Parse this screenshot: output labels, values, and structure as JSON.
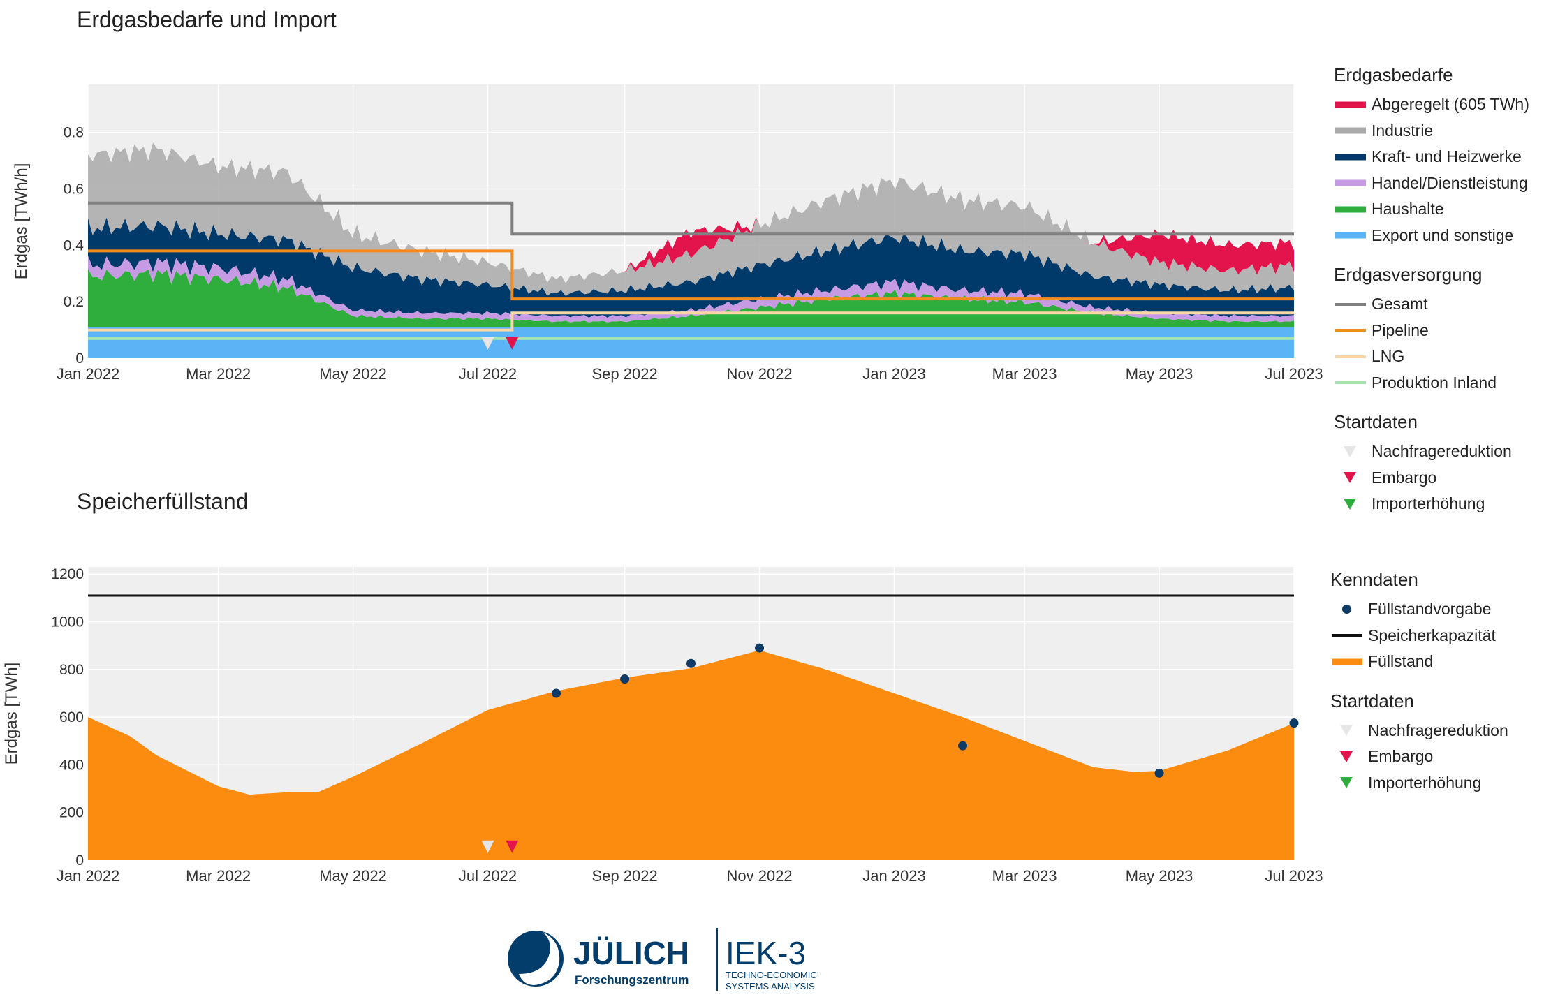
{
  "chart_top": {
    "title": "Erdgasbedarfe und Import",
    "ylabel": "Erdgas [TWh/h]",
    "x_ticks": [
      "Jan 2022",
      "Mar 2022",
      "May 2022",
      "Jul 2022",
      "Sep 2022",
      "Nov 2022",
      "Jan 2023",
      "Mar 2023",
      "May 2023",
      "Jul 2023"
    ],
    "y_ticks": [
      "0",
      "0.2",
      "0.4",
      "0.6",
      "0.8"
    ],
    "legend": {
      "demand_title": "Erdgasbedarfe",
      "demand": [
        {
          "label": "Abgeregelt (605 TWh)",
          "color": "#e3134b"
        },
        {
          "label": "Industrie",
          "color": "#a9a9a9"
        },
        {
          "label": "Kraft- und Heizwerke",
          "color": "#003a6a"
        },
        {
          "label": "Handel/Dienstleistung",
          "color": "#c79be4"
        },
        {
          "label": "Haushalte",
          "color": "#2fae3d"
        },
        {
          "label": "Export und sonstige",
          "color": "#5ab4f5"
        }
      ],
      "supply_title": "Erdgasversorgung",
      "supply": [
        {
          "label": "Gesamt",
          "color": "#808080"
        },
        {
          "label": "Pipeline",
          "color": "#f28c1e"
        },
        {
          "label": "LNG",
          "color": "#f9d6a6"
        },
        {
          "label": "Produktion Inland",
          "color": "#a6e3b0"
        }
      ],
      "start_title": "Startdaten",
      "start": [
        {
          "label": "Nachfragereduktion",
          "color": "#e6e6e6"
        },
        {
          "label": "Embargo",
          "color": "#e3134b"
        },
        {
          "label": "Importerhöhung",
          "color": "#2fae3d"
        }
      ]
    }
  },
  "chart_bottom": {
    "title": "Speicherfüllstand",
    "ylabel": "Erdgas [TWh]",
    "x_ticks": [
      "Jan 2022",
      "Mar 2022",
      "May 2022",
      "Jul 2022",
      "Sep 2022",
      "Nov 2022",
      "Jan 2023",
      "Mar 2023",
      "May 2023",
      "Jul 2023"
    ],
    "y_ticks": [
      "0",
      "200",
      "400",
      "600",
      "800",
      "1000",
      "1200"
    ],
    "legend": {
      "kenn_title": "Kenndaten",
      "kenn": [
        {
          "label": "Füllstandvorgabe",
          "color": "#0d3b66"
        },
        {
          "label": "Speicherkapazität",
          "color": "#111111"
        },
        {
          "label": "Füllstand",
          "color": "#fb8c0f"
        }
      ],
      "start_title": "Startdaten",
      "start": [
        {
          "label": "Nachfragereduktion",
          "color": "#e6e6e6"
        },
        {
          "label": "Embargo",
          "color": "#e3134b"
        },
        {
          "label": "Importerhöhung",
          "color": "#2fae3d"
        }
      ]
    }
  },
  "chart_data": [
    {
      "type": "area",
      "title": "Erdgasbedarfe und Import",
      "ylabel": "Erdgas [TWh/h]",
      "xlim": [
        "2022-01-01",
        "2023-07-01"
      ],
      "ylim": [
        0,
        0.97
      ],
      "x": [
        "2022-01-01",
        "2022-02-01",
        "2022-03-01",
        "2022-04-01",
        "2022-05-01",
        "2022-06-01",
        "2022-07-01",
        "2022-08-01",
        "2022-09-01",
        "2022-10-01",
        "2022-11-01",
        "2022-12-01",
        "2023-01-01",
        "2023-02-01",
        "2023-03-01",
        "2023-04-01",
        "2023-05-01",
        "2023-06-01",
        "2023-07-01"
      ],
      "series": [
        {
          "name": "Export und sonstige",
          "values": [
            0.11,
            0.11,
            0.11,
            0.11,
            0.11,
            0.11,
            0.11,
            0.11,
            0.11,
            0.11,
            0.11,
            0.11,
            0.11,
            0.11,
            0.11,
            0.11,
            0.11,
            0.11,
            0.11
          ]
        },
        {
          "name": "Haushalte",
          "values": [
            0.18,
            0.19,
            0.17,
            0.14,
            0.04,
            0.03,
            0.03,
            0.02,
            0.02,
            0.04,
            0.07,
            0.1,
            0.12,
            0.1,
            0.09,
            0.05,
            0.03,
            0.02,
            0.02
          ]
        },
        {
          "name": "Handel/Dienstleistung",
          "values": [
            0.04,
            0.04,
            0.04,
            0.03,
            0.02,
            0.02,
            0.02,
            0.02,
            0.02,
            0.02,
            0.03,
            0.03,
            0.04,
            0.03,
            0.03,
            0.02,
            0.02,
            0.02,
            0.02
          ]
        },
        {
          "name": "Kraft- und Heizwerke",
          "values": [
            0.13,
            0.13,
            0.12,
            0.14,
            0.15,
            0.12,
            0.1,
            0.08,
            0.09,
            0.1,
            0.12,
            0.14,
            0.16,
            0.14,
            0.14,
            0.11,
            0.1,
            0.09,
            0.1
          ]
        },
        {
          "name": "Industrie",
          "values": [
            0.26,
            0.27,
            0.24,
            0.24,
            0.12,
            0.1,
            0.08,
            0.05,
            0.07,
            0.1,
            0.14,
            0.18,
            0.2,
            0.18,
            0.17,
            0.12,
            0.08,
            0.07,
            0.08
          ]
        },
        {
          "name": "Abgeregelt (605 TWh)",
          "values": [
            0,
            0,
            0,
            0,
            0,
            0,
            0,
            0,
            0,
            0.08,
            0,
            0,
            0,
            0,
            0,
            0,
            0.1,
            0.09,
            0.08
          ]
        }
      ],
      "supply": [
        {
          "name": "Gesamt",
          "x": [
            "2022-01-01",
            "2022-07-12",
            "2022-07-12",
            "2023-07-01"
          ],
          "values": [
            0.55,
            0.55,
            0.44,
            0.44
          ]
        },
        {
          "name": "Pipeline",
          "x": [
            "2022-01-01",
            "2022-07-12",
            "2022-07-12",
            "2023-07-01"
          ],
          "values": [
            0.38,
            0.38,
            0.21,
            0.21
          ]
        },
        {
          "name": "LNG",
          "x": [
            "2022-01-01",
            "2022-07-12",
            "2022-07-12",
            "2023-07-01"
          ],
          "values": [
            0.1,
            0.1,
            0.16,
            0.16
          ]
        },
        {
          "name": "Produktion Inland",
          "x": [
            "2022-01-01",
            "2023-07-01"
          ],
          "values": [
            0.07,
            0.07
          ]
        }
      ],
      "markers": [
        {
          "name": "Nachfragereduktion",
          "x": "2022-07-01",
          "y": 0.03
        },
        {
          "name": "Embargo",
          "x": "2022-07-12",
          "y": 0.03
        }
      ]
    },
    {
      "type": "area",
      "title": "Speicherfüllstand",
      "ylabel": "Erdgas [TWh]",
      "xlim": [
        "2022-01-01",
        "2023-07-01"
      ],
      "ylim": [
        0,
        1230
      ],
      "series": [
        {
          "name": "Füllstand",
          "x": [
            "2022-01-01",
            "2022-01-20",
            "2022-02-01",
            "2022-03-01",
            "2022-03-15",
            "2022-04-01",
            "2022-04-15",
            "2022-05-01",
            "2022-06-01",
            "2022-07-01",
            "2022-08-01",
            "2022-09-01",
            "2022-10-01",
            "2022-11-01",
            "2022-12-01",
            "2023-01-01",
            "2023-02-01",
            "2023-03-01",
            "2023-04-01",
            "2023-04-20",
            "2023-05-01",
            "2023-06-01",
            "2023-07-01"
          ],
          "values": [
            600,
            520,
            440,
            310,
            275,
            285,
            285,
            350,
            490,
            630,
            710,
            765,
            805,
            880,
            800,
            700,
            600,
            500,
            390,
            370,
            375,
            460,
            575
          ]
        }
      ],
      "capacity": {
        "name": "Speicherkapazität",
        "value": 1110
      },
      "targets": {
        "name": "Füllstandvorgabe",
        "x": [
          "2022-08-01",
          "2022-09-01",
          "2022-10-01",
          "2022-11-01",
          "2023-02-01",
          "2023-05-01",
          "2023-07-01"
        ],
        "values": [
          700,
          760,
          825,
          890,
          480,
          365,
          575
        ]
      },
      "markers": [
        {
          "name": "Nachfragereduktion",
          "x": "2022-07-01",
          "y": 30
        },
        {
          "name": "Embargo",
          "x": "2022-07-12",
          "y": 30
        }
      ]
    }
  ],
  "logo": {
    "brand": "JÜLICH",
    "brand_sub": "Forschungszentrum",
    "inst": "IEK-3",
    "inst_sub1": "TECHNO-ECONOMIC",
    "inst_sub2": "SYSTEMS ANALYSIS"
  }
}
